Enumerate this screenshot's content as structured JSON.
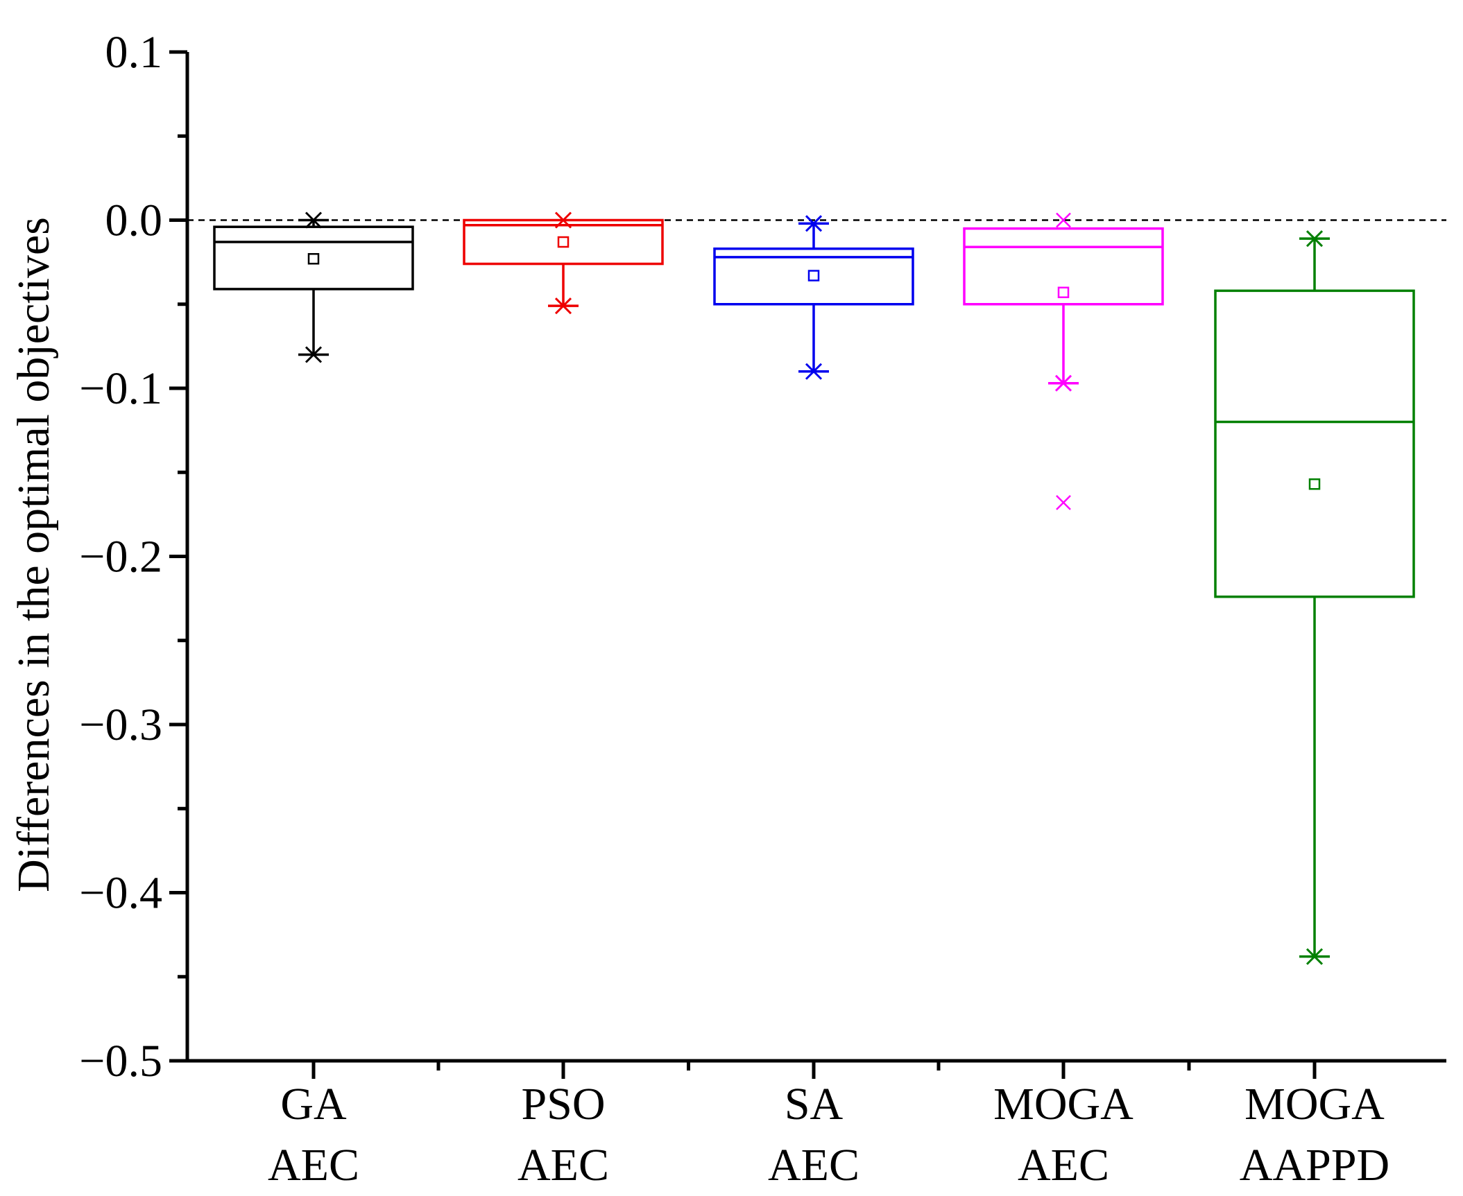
{
  "chart_data": {
    "type": "box",
    "title": "",
    "xlabel": "",
    "ylabel": "Differences in the optimal objectives",
    "ylim": [
      -0.5,
      0.1
    ],
    "yticks": [
      0.1,
      0.0,
      -0.1,
      -0.2,
      -0.3,
      -0.4,
      -0.5
    ],
    "ytick_labels": [
      "0.1",
      "0.0",
      "−0.1",
      "−0.2",
      "−0.3",
      "−0.4",
      "−0.5"
    ],
    "reference_line": 0.0,
    "series": [
      {
        "name": "GA AEC",
        "label_line1": "GA",
        "label_line2": "AEC",
        "color": "#000000",
        "whisker_low": -0.08,
        "q1": -0.041,
        "median": -0.013,
        "q3": -0.004,
        "whisker_high": 0.0,
        "mean": -0.023,
        "outliers": []
      },
      {
        "name": "PSO AEC",
        "label_line1": "PSO",
        "label_line2": "AEC",
        "color": "#ee0000",
        "whisker_low": -0.051,
        "q1": -0.026,
        "median": -0.003,
        "q3": 0.0,
        "whisker_high": 0.0,
        "mean": -0.013,
        "outliers": []
      },
      {
        "name": "SA AEC",
        "label_line1": "SA",
        "label_line2": "AEC",
        "color": "#0000ee",
        "whisker_low": -0.09,
        "q1": -0.05,
        "median": -0.022,
        "q3": -0.017,
        "whisker_high": -0.002,
        "mean": -0.033,
        "outliers": []
      },
      {
        "name": "MOGA AEC",
        "label_line1": "MOGA",
        "label_line2": "AEC",
        "color": "#ff00ff",
        "whisker_low": -0.097,
        "q1": -0.05,
        "median": -0.016,
        "q3": -0.005,
        "whisker_high": -0.005,
        "mean": -0.043,
        "outliers": [
          0.0,
          -0.168
        ]
      },
      {
        "name": "MOGA AAPPD",
        "label_line1": "MOGA",
        "label_line2": "AAPPD",
        "color": "#008000",
        "whisker_low": -0.438,
        "q1": -0.224,
        "median": -0.12,
        "q3": -0.042,
        "whisker_high": -0.011,
        "mean": -0.157,
        "outliers": []
      }
    ]
  }
}
